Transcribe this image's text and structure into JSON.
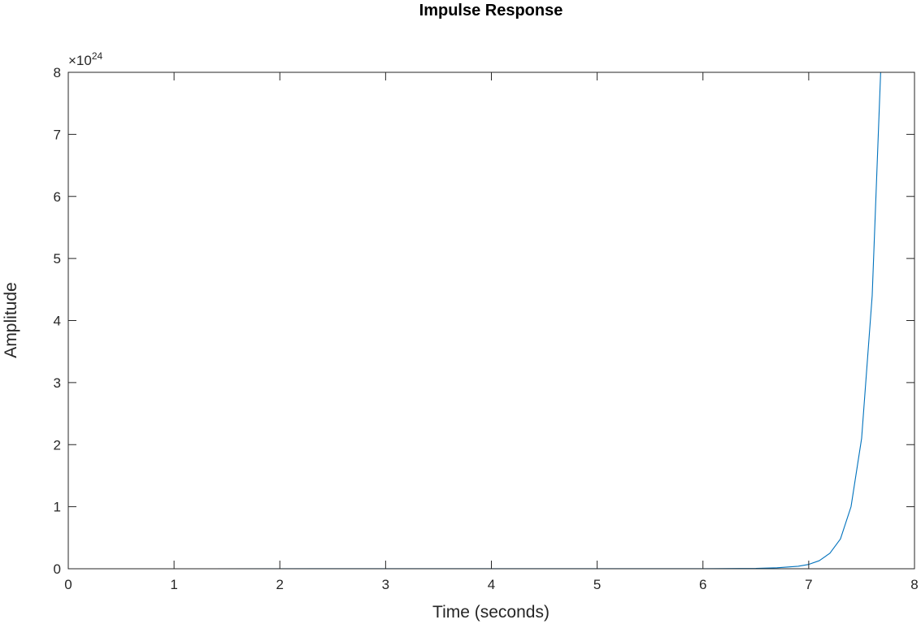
{
  "chart_data": {
    "type": "line",
    "title": "Impulse Response",
    "xlabel": "Time (seconds)",
    "ylabel": "Amplitude",
    "xlim": [
      0,
      8
    ],
    "ylim": [
      0,
      8
    ],
    "y_exponent_base": "×10",
    "y_exponent_power": "24",
    "xticks": [
      0,
      1,
      2,
      3,
      4,
      5,
      6,
      7,
      8
    ],
    "yticks": [
      0,
      1,
      2,
      3,
      4,
      5,
      6,
      7,
      8
    ],
    "grid": false,
    "box": true,
    "series": [
      {
        "color": "#0072BD",
        "x": [
          0,
          6.0,
          6.5,
          6.7,
          6.9,
          7.0,
          7.1,
          7.2,
          7.3,
          7.4,
          7.5,
          7.6,
          7.68
        ],
        "y": [
          0,
          0.0005,
          0.006,
          0.016,
          0.04,
          0.07,
          0.13,
          0.25,
          0.48,
          1.0,
          2.1,
          4.4,
          8.0
        ]
      }
    ]
  }
}
